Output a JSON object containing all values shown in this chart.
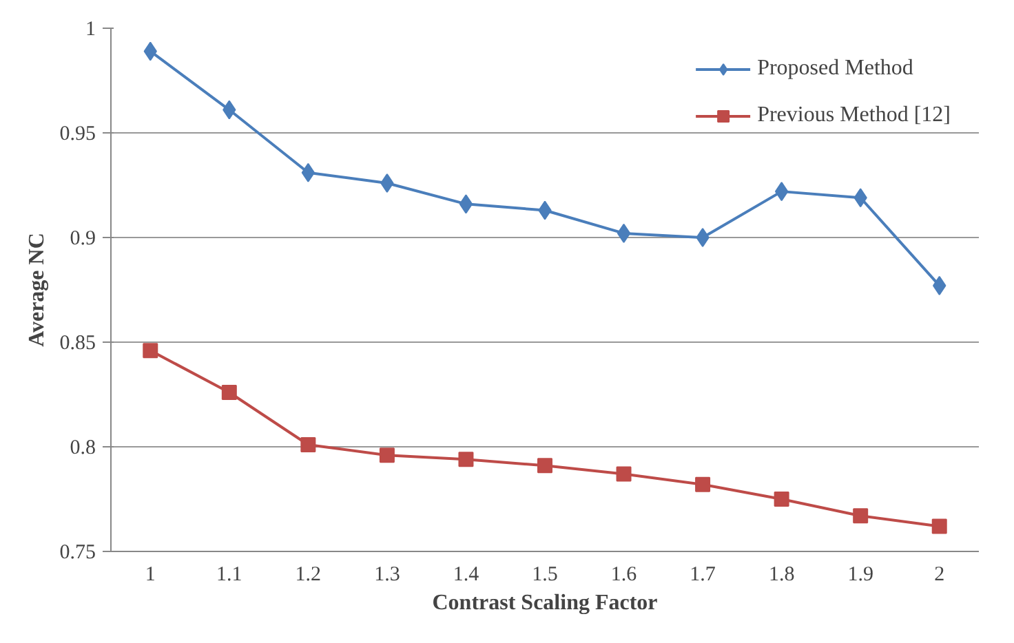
{
  "chart_data": {
    "type": "line",
    "xlabel": "Contrast Scaling Factor",
    "ylabel": "Average NC",
    "categories": [
      "1",
      "1.1",
      "1.2",
      "1.3",
      "1.4",
      "1.5",
      "1.6",
      "1.7",
      "1.8",
      "1.9",
      "2"
    ],
    "series": [
      {
        "name": "Proposed Method",
        "color": "#4a7ebb",
        "marker": "diamond",
        "values": [
          0.989,
          0.961,
          0.931,
          0.926,
          0.916,
          0.913,
          0.902,
          0.9,
          0.922,
          0.919,
          0.877
        ]
      },
      {
        "name": "Previous Method [12]",
        "color": "#be4b48",
        "marker": "square",
        "values": [
          0.846,
          0.826,
          0.801,
          0.796,
          0.794,
          0.791,
          0.787,
          0.782,
          0.775,
          0.767,
          0.762
        ]
      }
    ],
    "ylim": [
      0.75,
      1
    ],
    "yticks": [
      0.75,
      0.8,
      0.85,
      0.9,
      0.95,
      "1"
    ],
    "grid": "y",
    "legend": "top right",
    "line_style": "solid"
  }
}
